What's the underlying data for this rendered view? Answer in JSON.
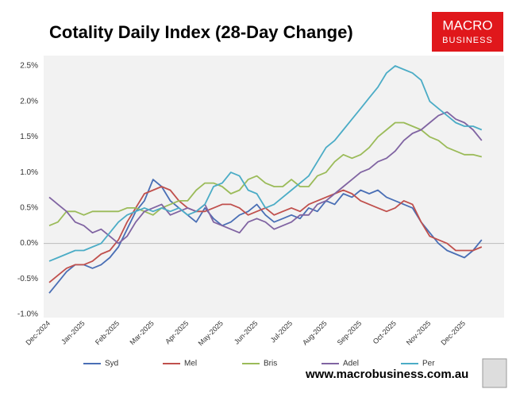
{
  "chart_data": {
    "type": "line",
    "title": "Cotality Daily Index (28-Day Change)",
    "categories": [
      "Dec-2024",
      null,
      null,
      null,
      "Jan-2025",
      null,
      null,
      null,
      "Feb-2025",
      null,
      null,
      null,
      "Mar-2025",
      null,
      null,
      null,
      "Apr-2025",
      null,
      null,
      null,
      "May-2025",
      null,
      null,
      null,
      "Jun-2025",
      null,
      null,
      null,
      "Jul-2025",
      null,
      null,
      null,
      "Aug-2025",
      null,
      null,
      null,
      "Sep-2025",
      null,
      null,
      null,
      "Oct-2025",
      null,
      null,
      null,
      "Nov-2025",
      null,
      null,
      null,
      "Dec-2025",
      null,
      null
    ],
    "series": [
      {
        "name": "Syd",
        "color": "#4a6fb5",
        "values": [
          -0.7,
          -0.55,
          -0.4,
          -0.3,
          -0.3,
          -0.35,
          -0.3,
          -0.2,
          -0.05,
          0.2,
          0.45,
          0.6,
          0.9,
          0.8,
          0.6,
          0.5,
          0.4,
          0.3,
          0.5,
          0.35,
          0.25,
          0.3,
          0.4,
          0.45,
          0.55,
          0.4,
          0.3,
          0.35,
          0.4,
          0.35,
          0.5,
          0.45,
          0.6,
          0.55,
          0.7,
          0.65,
          0.75,
          0.7,
          0.75,
          0.65,
          0.6,
          0.55,
          0.5,
          0.3,
          0.15,
          0.0,
          -0.1,
          -0.15,
          -0.2,
          -0.1,
          0.05
        ]
      },
      {
        "name": "Mel",
        "color": "#c0504d",
        "values": [
          -0.55,
          -0.45,
          -0.35,
          -0.3,
          -0.3,
          -0.25,
          -0.15,
          -0.1,
          0.05,
          0.3,
          0.5,
          0.7,
          0.75,
          0.8,
          0.75,
          0.6,
          0.5,
          0.45,
          0.45,
          0.5,
          0.55,
          0.55,
          0.5,
          0.4,
          0.45,
          0.5,
          0.4,
          0.45,
          0.5,
          0.45,
          0.55,
          0.6,
          0.65,
          0.7,
          0.75,
          0.7,
          0.6,
          0.55,
          0.5,
          0.45,
          0.5,
          0.6,
          0.55,
          0.3,
          0.1,
          0.05,
          0.0,
          -0.1,
          -0.1,
          -0.1,
          -0.05
        ]
      },
      {
        "name": "Bris",
        "color": "#9bbb59",
        "values": [
          0.25,
          0.3,
          0.45,
          0.45,
          0.4,
          0.45,
          0.45,
          0.45,
          0.45,
          0.5,
          0.5,
          0.45,
          0.4,
          0.5,
          0.55,
          0.6,
          0.6,
          0.75,
          0.85,
          0.85,
          0.8,
          0.7,
          0.75,
          0.9,
          0.95,
          0.85,
          0.8,
          0.8,
          0.9,
          0.8,
          0.8,
          0.95,
          1.0,
          1.15,
          1.25,
          1.2,
          1.25,
          1.35,
          1.5,
          1.6,
          1.7,
          1.7,
          1.65,
          1.6,
          1.5,
          1.45,
          1.35,
          1.3,
          1.25,
          1.25,
          1.22
        ]
      },
      {
        "name": "Adel",
        "color": "#8064a2",
        "values": [
          0.65,
          0.55,
          0.45,
          0.3,
          0.25,
          0.15,
          0.2,
          0.1,
          0.0,
          0.1,
          0.3,
          0.45,
          0.5,
          0.55,
          0.4,
          0.45,
          0.5,
          0.45,
          0.55,
          0.3,
          0.25,
          0.2,
          0.15,
          0.3,
          0.35,
          0.3,
          0.2,
          0.25,
          0.3,
          0.4,
          0.4,
          0.55,
          0.6,
          0.7,
          0.8,
          0.9,
          1.0,
          1.05,
          1.15,
          1.2,
          1.3,
          1.45,
          1.55,
          1.6,
          1.7,
          1.8,
          1.85,
          1.75,
          1.7,
          1.6,
          1.45
        ]
      },
      {
        "name": "Per",
        "color": "#4bacc6",
        "values": [
          -0.25,
          -0.2,
          -0.15,
          -0.1,
          -0.1,
          -0.05,
          0.0,
          0.15,
          0.3,
          0.4,
          0.45,
          0.5,
          0.45,
          0.5,
          0.45,
          0.5,
          0.4,
          0.45,
          0.55,
          0.8,
          0.85,
          1.0,
          0.95,
          0.75,
          0.7,
          0.5,
          0.55,
          0.65,
          0.75,
          0.85,
          0.95,
          1.15,
          1.35,
          1.45,
          1.6,
          1.75,
          1.9,
          2.05,
          2.2,
          2.4,
          2.5,
          2.45,
          2.4,
          2.3,
          2.0,
          1.9,
          1.8,
          1.7,
          1.65,
          1.65,
          1.6
        ]
      }
    ],
    "ylim": [
      -1.0,
      2.5
    ],
    "yticks": [
      {
        "value": -1.0,
        "label": "-1.0%"
      },
      {
        "value": -0.5,
        "label": "-0.5%"
      },
      {
        "value": 0,
        "label": "0.0%"
      },
      {
        "value": 0.5,
        "label": "0.5%"
      },
      {
        "value": 1.0,
        "label": "1.0%"
      },
      {
        "value": 1.5,
        "label": "1.5%"
      },
      {
        "value": 2.0,
        "label": "2.0%"
      },
      {
        "value": 2.5,
        "label": "2.5%"
      }
    ],
    "grid": false
  },
  "brand": {
    "logo": [
      "MACRO",
      "BUSINESS"
    ],
    "website": "www.macrobusiness.com.au"
  }
}
